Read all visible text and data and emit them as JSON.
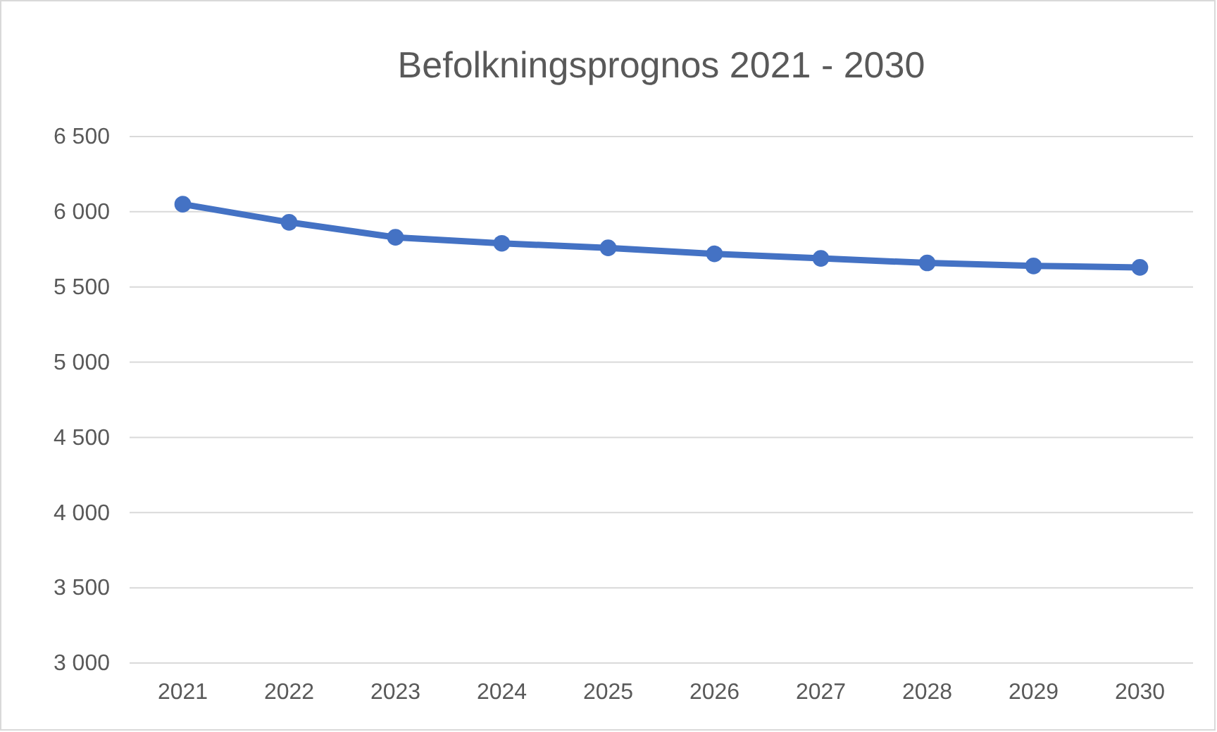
{
  "chart_data": {
    "type": "line",
    "title": "Befolkningsprognos 2021 - 2030",
    "categories": [
      "2021",
      "2022",
      "2023",
      "2024",
      "2025",
      "2026",
      "2027",
      "2028",
      "2029",
      "2030"
    ],
    "series": [
      {
        "color": "#4472c4",
        "values": [
          6050,
          5930,
          5830,
          5790,
          5760,
          5720,
          5690,
          5660,
          5640,
          5630
        ]
      }
    ],
    "ylim": [
      3000,
      6500
    ],
    "yticks": [
      {
        "value": 3000,
        "label": "3 000"
      },
      {
        "value": 3500,
        "label": "3 500"
      },
      {
        "value": 4000,
        "label": "4 000"
      },
      {
        "value": 4500,
        "label": "4 500"
      },
      {
        "value": 5000,
        "label": "5 000"
      },
      {
        "value": 5500,
        "label": "5 500"
      },
      {
        "value": 6000,
        "label": "6 000"
      },
      {
        "value": 6500,
        "label": "6 500"
      }
    ],
    "grid": "y",
    "marker": "circle",
    "line_style": "solid"
  }
}
